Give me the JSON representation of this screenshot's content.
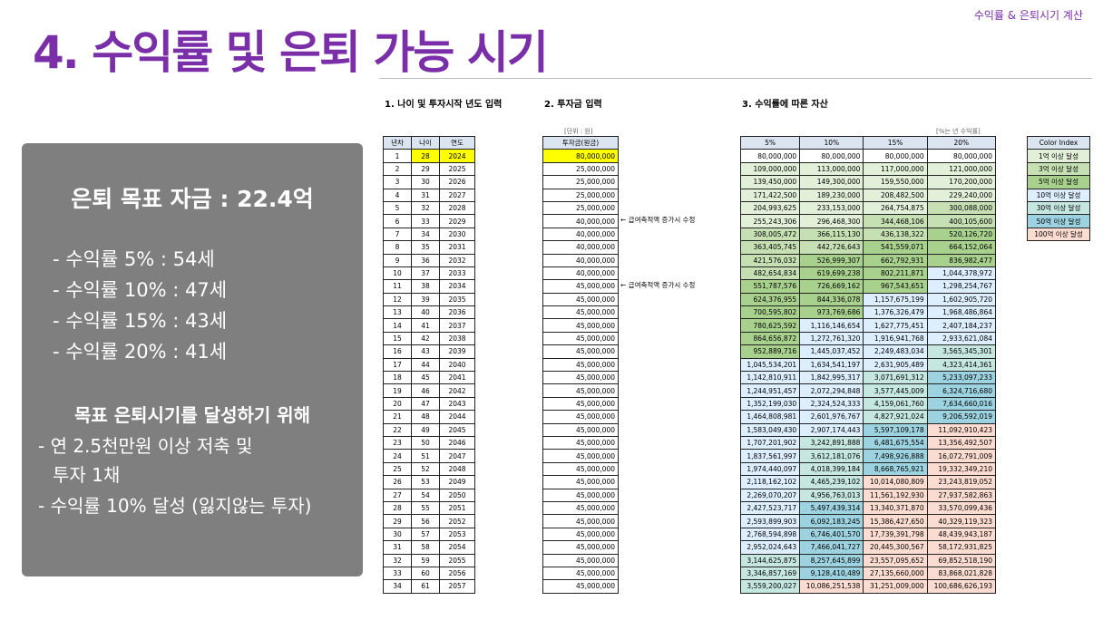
{
  "header": {
    "title": "4. 수익률 및 은퇴 가능 시기",
    "subtitle": "수익률 & 은퇴시기 계산"
  },
  "sections": {
    "s1": "1. 나이 및 투자시작 년도 입력",
    "s2": "2. 투자금 입력",
    "s3": "3. 수익률에 따른 자산"
  },
  "notes": {
    "unit": "[단위 : 원]",
    "rate": "[%는 년 수익률]"
  },
  "panel": {
    "goal": "은퇴 목표 자금 : 22.4억",
    "ages": [
      "- 수익률 5% : 54세",
      "- 수익률 10% : 47세",
      "- 수익률 15% : 43세",
      "- 수익률 20% : 41세"
    ],
    "sub": "목표 은퇴시기를 달성하기 위해",
    "lines": [
      "- 연 2.5천만원 이상 저축 및",
      "투자 1채",
      "- 수익률 10% 달성 (잃지않는 투자)"
    ]
  },
  "table1": {
    "headers": [
      "년차",
      "나이",
      "연도"
    ],
    "start_year": 1,
    "start_age": 28,
    "start_calendar_year": 2024,
    "count": 34
  },
  "table2": {
    "header": "투자금(원금)",
    "values": [
      "80,000,000",
      "25,000,000",
      "25,000,000",
      "25,000,000",
      "25,000,000",
      "40,000,000",
      "40,000,000",
      "40,000,000",
      "40,000,000",
      "40,000,000",
      "45,000,000",
      "45,000,000",
      "45,000,000",
      "45,000,000",
      "45,000,000",
      "45,000,000",
      "45,000,000",
      "45,000,000",
      "45,000,000",
      "45,000,000",
      "45,000,000",
      "45,000,000",
      "45,000,000",
      "45,000,000",
      "45,000,000",
      "45,000,000",
      "45,000,000",
      "45,000,000",
      "45,000,000",
      "45,000,000",
      "45,000,000",
      "45,000,000",
      "45,000,000",
      "45,000,000"
    ]
  },
  "side_notes": [
    {
      "row": 6,
      "text": "← 급여축적액 증가시 수정"
    },
    {
      "row": 11,
      "text": "← 급여축적액 증가시 수정"
    }
  ],
  "table3": {
    "headers": [
      "5%",
      "10%",
      "15%",
      "20%"
    ],
    "rows": [
      [
        [
          "80,000,000",
          "80,000,000",
          "80,000,000",
          "80,000,000"
        ],
        [
          "",
          "",
          "",
          ""
        ]
      ],
      [
        [
          "109,000,000",
          "113,000,000",
          "117,000,000",
          "121,000,000"
        ],
        [
          "",
          "",
          "",
          ""
        ]
      ],
      [
        [
          "139,450,000",
          "149,300,000",
          "159,550,000",
          "170,200,000"
        ],
        [
          "",
          "",
          "",
          ""
        ]
      ],
      [
        [
          "171,422,500",
          "189,230,000",
          "208,482,500",
          "229,240,000"
        ],
        [
          "",
          "",
          "",
          ""
        ]
      ],
      [
        [
          "204,993,625",
          "233,153,000",
          "264,754,875",
          "300,088,000"
        ],
        [
          "",
          "",
          "",
          ""
        ]
      ],
      [
        [
          "255,243,306",
          "296,468,300",
          "344,468,106",
          "400,105,600"
        ],
        [
          "",
          "",
          "",
          ""
        ]
      ],
      [
        [
          "308,005,472",
          "366,115,130",
          "436,138,322",
          "520,126,720"
        ],
        [
          "",
          "",
          "",
          ""
        ]
      ],
      [
        [
          "363,405,745",
          "442,726,643",
          "541,559,071",
          "664,152,064"
        ],
        [
          "",
          "",
          "",
          ""
        ]
      ],
      [
        [
          "421,576,032",
          "526,999,307",
          "662,792,931",
          "836,982,477"
        ],
        [
          "",
          "",
          "",
          ""
        ]
      ],
      [
        [
          "482,654,834",
          "619,699,238",
          "802,211,871",
          "1,044,378,972"
        ],
        [
          "",
          "",
          "",
          ""
        ]
      ],
      [
        [
          "551,787,576",
          "726,669,162",
          "967,543,651",
          "1,298,254,767"
        ],
        [
          "",
          "",
          "",
          ""
        ]
      ],
      [
        [
          "624,376,955",
          "844,336,078",
          "1,157,675,199",
          "1,602,905,720"
        ],
        [
          "",
          "",
          "",
          ""
        ]
      ],
      [
        [
          "700,595,802",
          "973,769,686",
          "1,376,326,479",
          "1,968,486,864"
        ],
        [
          "",
          "",
          "",
          ""
        ]
      ],
      [
        [
          "780,625,592",
          "1,116,146,654",
          "1,627,775,451",
          "2,407,184,237"
        ],
        [
          "",
          "",
          "",
          ""
        ]
      ],
      [
        [
          "864,656,872",
          "1,272,761,320",
          "1,916,941,768",
          "2,933,621,084"
        ],
        [
          "",
          "",
          "",
          ""
        ]
      ],
      [
        [
          "952,889,716",
          "1,445,037,452",
          "2,249,483,034",
          "3,565,345,301"
        ],
        [
          "",
          "",
          "",
          ""
        ]
      ],
      [
        [
          "1,045,534,201",
          "1,634,541,197",
          "2,631,905,489",
          "4,323,414,361"
        ],
        [
          "",
          "",
          "",
          ""
        ]
      ],
      [
        [
          "1,142,810,911",
          "1,842,995,317",
          "3,071,691,312",
          "5,233,097,233"
        ],
        [
          "",
          "",
          "",
          ""
        ]
      ],
      [
        [
          "1,244,951,457",
          "2,072,294,848",
          "3,577,445,009",
          "6,324,716,680"
        ],
        [
          "",
          "",
          "",
          ""
        ]
      ],
      [
        [
          "1,352,199,030",
          "2,324,524,333",
          "4,159,061,760",
          "7,634,660,016"
        ],
        [
          "",
          "",
          "",
          ""
        ]
      ],
      [
        [
          "1,464,808,981",
          "2,601,976,767",
          "4,827,921,024",
          "9,206,592,019"
        ],
        [
          "",
          "",
          "",
          ""
        ]
      ],
      [
        [
          "1,583,049,430",
          "2,907,174,443",
          "5,597,109,178",
          "11,092,910,423"
        ],
        [
          "",
          "",
          "",
          ""
        ]
      ],
      [
        [
          "1,707,201,902",
          "3,242,891,888",
          "6,481,675,554",
          "13,356,492,507"
        ],
        [
          "",
          "",
          "",
          ""
        ]
      ],
      [
        [
          "1,837,561,997",
          "3,612,181,076",
          "7,498,926,888",
          "16,072,791,009"
        ],
        [
          "",
          "",
          "",
          ""
        ]
      ],
      [
        [
          "1,974,440,097",
          "4,018,399,184",
          "8,668,765,921",
          "19,332,349,210"
        ],
        [
          "",
          "",
          "",
          ""
        ]
      ],
      [
        [
          "2,118,162,102",
          "4,465,239,102",
          "10,014,080,809",
          "23,243,819,052"
        ],
        [
          "",
          "",
          "",
          ""
        ]
      ],
      [
        [
          "2,269,070,207",
          "4,956,763,013",
          "11,561,192,930",
          "27,937,582,863"
        ],
        [
          "",
          "",
          "",
          ""
        ]
      ],
      [
        [
          "2,427,523,717",
          "5,497,439,314",
          "13,340,371,870",
          "33,570,099,436"
        ],
        [
          "",
          "",
          "",
          ""
        ]
      ],
      [
        [
          "2,593,899,903",
          "6,092,183,245",
          "15,386,427,650",
          "40,329,119,323"
        ],
        [
          "",
          "",
          "",
          ""
        ]
      ],
      [
        [
          "2,768,594,898",
          "6,746,401,570",
          "17,739,391,798",
          "48,439,943,187"
        ],
        [
          "",
          "",
          "",
          ""
        ]
      ],
      [
        [
          "2,952,024,643",
          "7,466,041,727",
          "20,445,300,567",
          "58,172,931,825"
        ],
        [
          "",
          "",
          "",
          ""
        ]
      ],
      [
        [
          "3,144,625,875",
          "8,257,645,899",
          "23,557,095,652",
          "69,852,518,190"
        ],
        [
          "",
          "",
          "",
          ""
        ]
      ],
      [
        [
          "3,346,857,169",
          "9,128,410,489",
          "27,135,660,000",
          "83,868,021,828"
        ],
        [
          "",
          "",
          "",
          ""
        ]
      ],
      [
        [
          "3,559,200,027",
          "10,086,251,538",
          "31,251,009,000",
          "100,686,626,193"
        ],
        [
          "",
          "",
          "",
          ""
        ]
      ]
    ]
  },
  "color_index": {
    "header": "Color Index",
    "items": [
      {
        "label": "1억 이상 달성",
        "color": "#e2f0d9"
      },
      {
        "label": "3억 이상 달성",
        "color": "#c6e0b4"
      },
      {
        "label": "5억 이상 달성",
        "color": "#a9d18e"
      },
      {
        "label": "10억 이상 달성",
        "color": "#ddeeff"
      },
      {
        "label": "30억 이상 달성",
        "color": "#c5e7e0"
      },
      {
        "label": "50억 이상 달성",
        "color": "#9dd3e0"
      },
      {
        "label": "100억 이상 달성",
        "color": "#fcdcd0"
      }
    ]
  },
  "thresholds": [
    100000000,
    300000000,
    500000000,
    1000000000,
    3000000000,
    5000000000,
    10000000000
  ],
  "colors": {
    "accent": "#7a2fa8",
    "panel": "#7f7f7f",
    "header_fill": "#dbe5f1",
    "highlight": "#ffff00"
  }
}
